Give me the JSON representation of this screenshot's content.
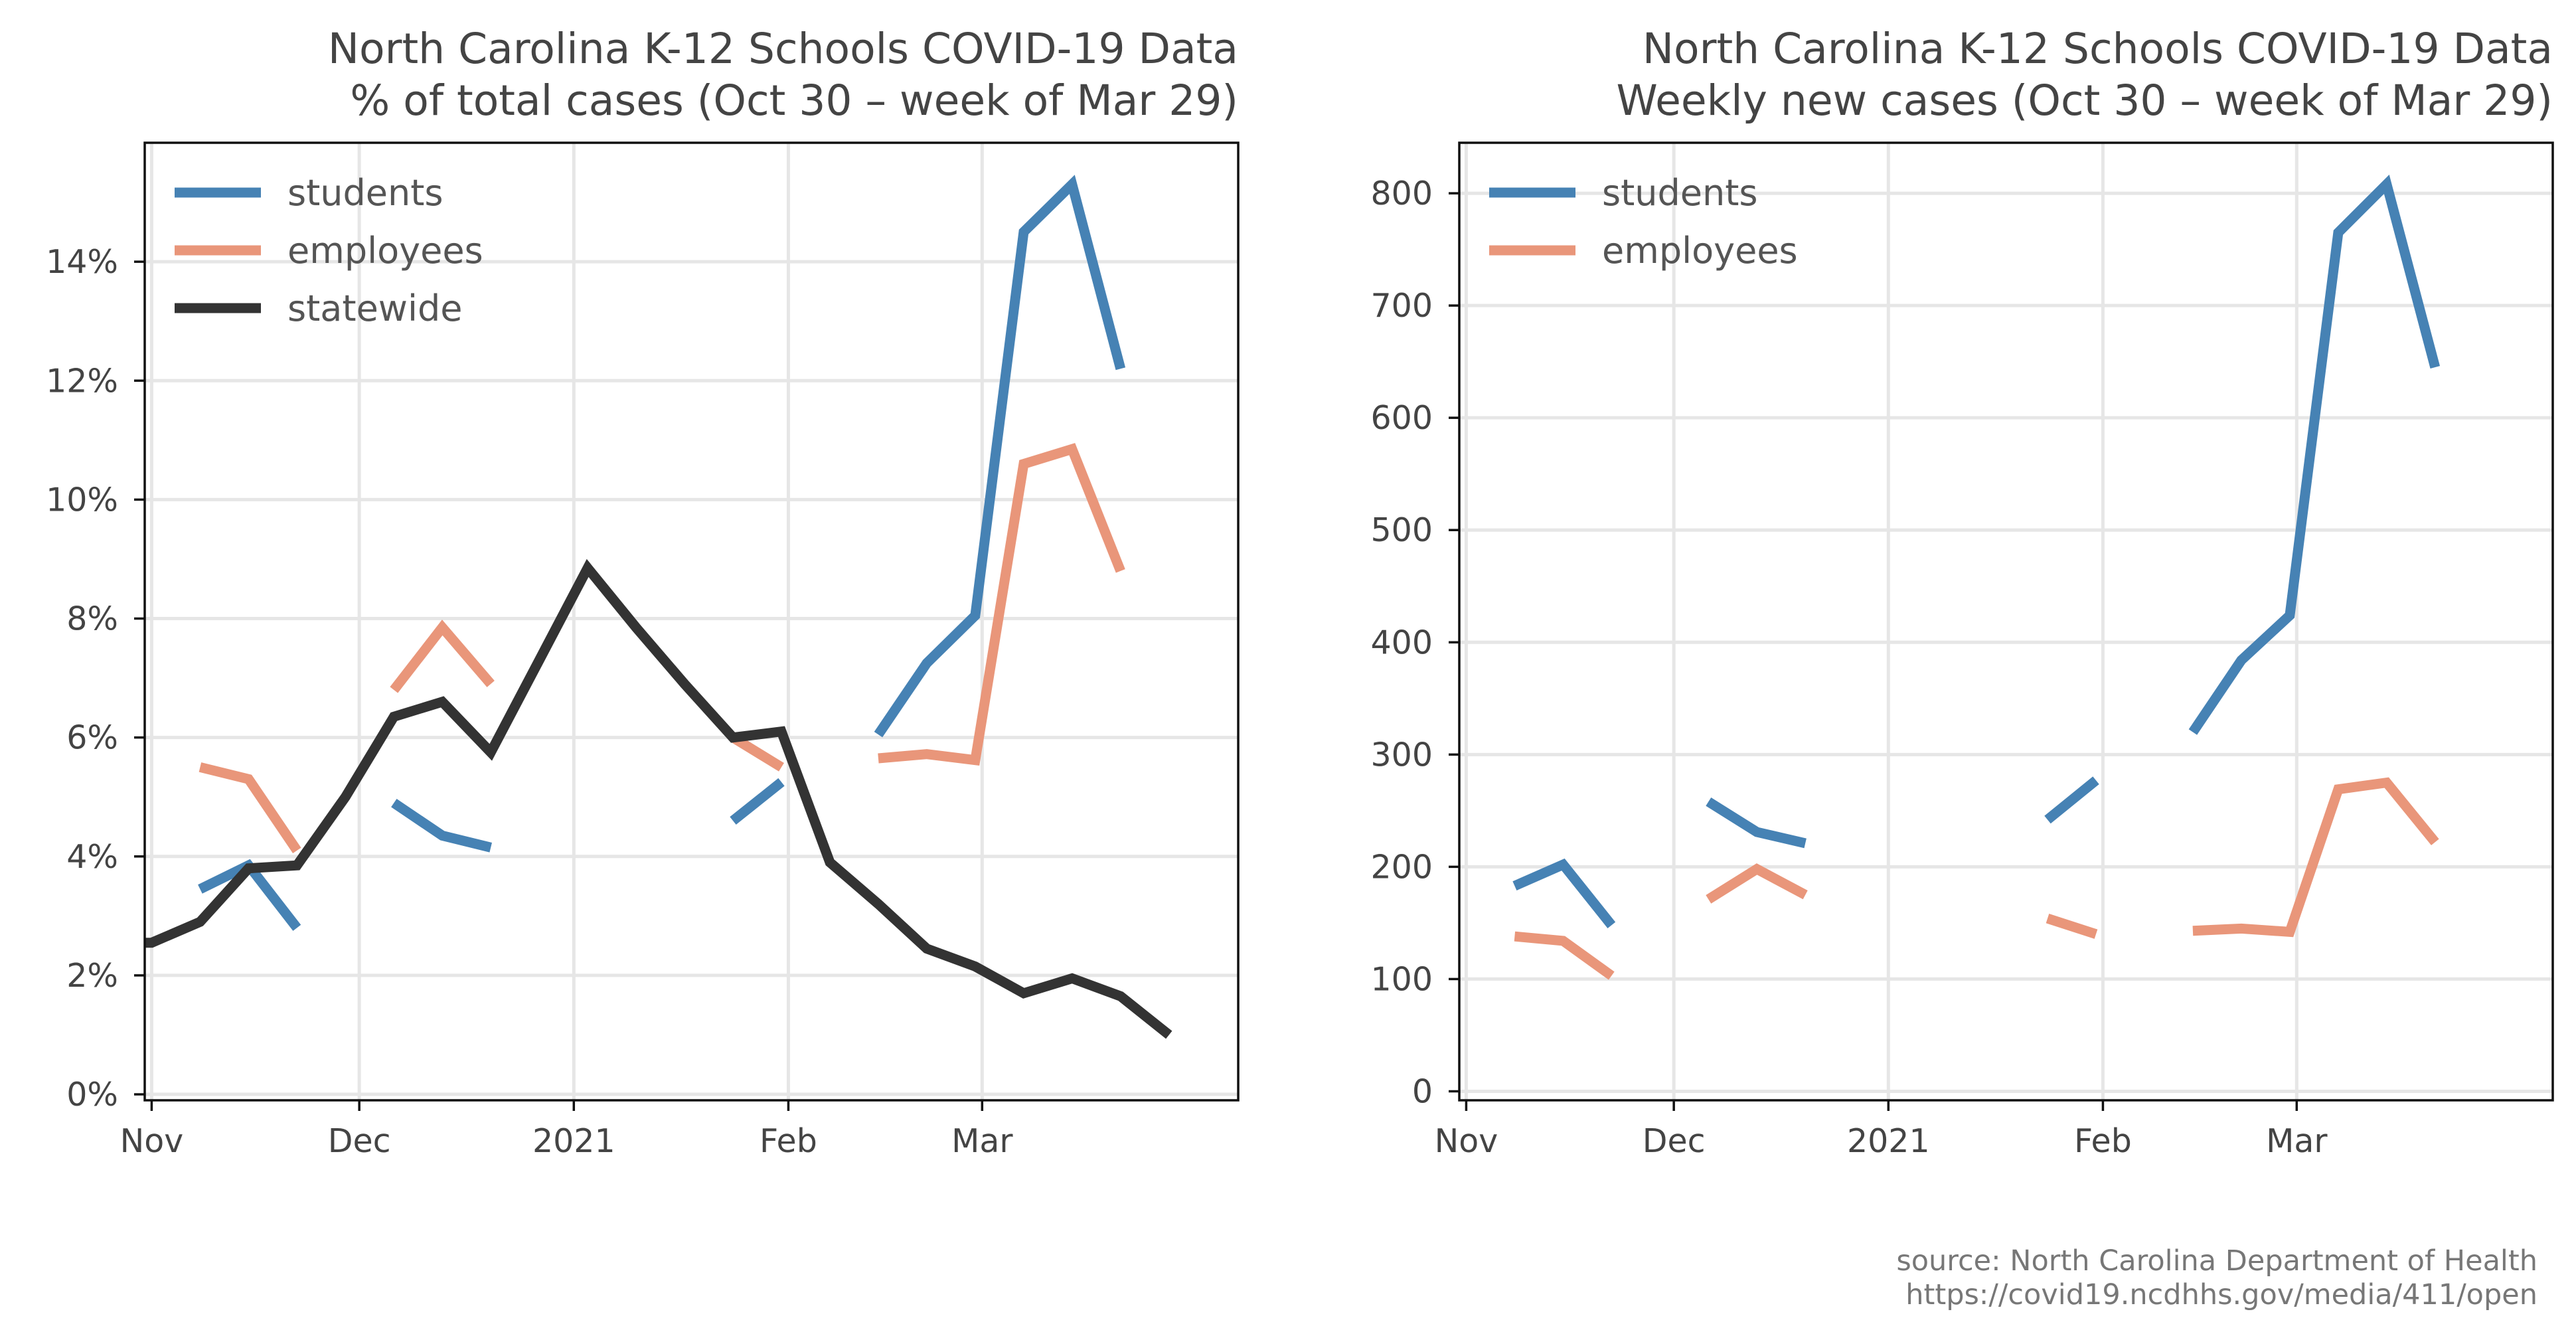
{
  "chart_data": [
    {
      "type": "line",
      "title": "North Carolina K-12 Schools COVID-19 Data",
      "subtitle": "% of total cases (Oct 30 – week of Mar 29)",
      "xlabel": "",
      "ylabel": "",
      "x_ticks": [
        {
          "date": "2020-11-01",
          "label": "Nov"
        },
        {
          "date": "2020-12-01",
          "label": "Dec"
        },
        {
          "date": "2021-01-01",
          "label": "2021"
        },
        {
          "date": "2021-02-01",
          "label": "Feb"
        },
        {
          "date": "2021-03-01",
          "label": "Mar"
        }
      ],
      "y_ticks": [
        {
          "value": 0,
          "label": "0%"
        },
        {
          "value": 2,
          "label": "2%"
        },
        {
          "value": 4,
          "label": "4%"
        },
        {
          "value": 6,
          "label": "6%"
        },
        {
          "value": 8,
          "label": "8%"
        },
        {
          "value": 10,
          "label": "10%"
        },
        {
          "value": 12,
          "label": "12%"
        },
        {
          "value": 14,
          "label": "14%"
        }
      ],
      "xlim": [
        "2020-10-31",
        "2021-04-07"
      ],
      "ylim": [
        -0.1,
        16.0
      ],
      "grid": true,
      "legend_position": "top-left",
      "series": [
        {
          "name": "students",
          "color": "#4682b4",
          "points": [
            [
              "2020-11-08",
              3.45
            ],
            [
              "2020-11-15",
              3.85
            ],
            [
              "2020-11-22",
              2.8
            ],
            null,
            [
              "2020-12-06",
              4.9
            ],
            [
              "2020-12-13",
              4.35
            ],
            [
              "2020-12-20",
              4.15
            ],
            null,
            [
              "2021-01-24",
              4.6
            ],
            [
              "2021-01-31",
              5.25
            ],
            null,
            [
              "2021-02-14",
              6.05
            ],
            [
              "2021-02-21",
              7.25
            ],
            [
              "2021-02-28",
              8.05
            ],
            [
              "2021-03-07",
              14.5
            ],
            [
              "2021-03-14",
              15.3
            ],
            [
              "2021-03-21",
              12.2
            ]
          ]
        },
        {
          "name": "employees",
          "color": "#e9967a",
          "points": [
            [
              "2020-11-08",
              5.5
            ],
            [
              "2020-11-15",
              5.3
            ],
            [
              "2020-11-22",
              4.1
            ],
            null,
            [
              "2020-12-06",
              6.8
            ],
            [
              "2020-12-13",
              7.85
            ],
            [
              "2020-12-20",
              6.9
            ],
            null,
            [
              "2021-01-24",
              6.0
            ],
            [
              "2021-01-31",
              5.5
            ],
            null,
            [
              "2021-02-14",
              5.65
            ],
            [
              "2021-02-21",
              5.72
            ],
            [
              "2021-02-28",
              5.62
            ],
            [
              "2021-03-07",
              10.6
            ],
            [
              "2021-03-14",
              10.85
            ],
            [
              "2021-03-21",
              8.8
            ]
          ]
        },
        {
          "name": "statewide",
          "color": "#333333",
          "points": [
            [
              "2020-10-31",
              2.55
            ],
            [
              "2020-11-01",
              2.55
            ],
            [
              "2020-11-08",
              2.9
            ],
            [
              "2020-11-15",
              3.8
            ],
            [
              "2020-11-22",
              3.85
            ],
            [
              "2020-11-29",
              5.0
            ],
            [
              "2020-12-06",
              6.35
            ],
            [
              "2020-12-13",
              6.6
            ],
            [
              "2020-12-20",
              5.75
            ],
            [
              "2020-12-27",
              7.3
            ],
            [
              "2021-01-03",
              8.85
            ],
            [
              "2021-01-10",
              7.85
            ],
            [
              "2021-01-17",
              6.9
            ],
            [
              "2021-01-24",
              6.0
            ],
            [
              "2021-01-31",
              6.1
            ],
            [
              "2021-02-07",
              3.9
            ],
            [
              "2021-02-14",
              3.2
            ],
            [
              "2021-02-21",
              2.45
            ],
            [
              "2021-02-28",
              2.15
            ],
            [
              "2021-03-07",
              1.7
            ],
            [
              "2021-03-14",
              1.95
            ],
            [
              "2021-03-21",
              1.65
            ],
            [
              "2021-03-28",
              1.0
            ]
          ]
        }
      ]
    },
    {
      "type": "line",
      "title": "North Carolina K-12 Schools COVID-19 Data",
      "subtitle": "Weekly new cases (Oct 30 – week of Mar 29)",
      "xlabel": "",
      "ylabel": "",
      "x_ticks": [
        {
          "date": "2020-11-01",
          "label": "Nov"
        },
        {
          "date": "2020-12-01",
          "label": "Dec"
        },
        {
          "date": "2021-01-01",
          "label": "2021"
        },
        {
          "date": "2021-02-01",
          "label": "Feb"
        },
        {
          "date": "2021-03-01",
          "label": "Mar"
        }
      ],
      "y_ticks": [
        {
          "value": 0,
          "label": "0"
        },
        {
          "value": 100,
          "label": "100"
        },
        {
          "value": 200,
          "label": "200"
        },
        {
          "value": 300,
          "label": "300"
        },
        {
          "value": 400,
          "label": "400"
        },
        {
          "value": 500,
          "label": "500"
        },
        {
          "value": 600,
          "label": "600"
        },
        {
          "value": 700,
          "label": "700"
        },
        {
          "value": 800,
          "label": "800"
        }
      ],
      "xlim": [
        "2020-10-31",
        "2021-04-07"
      ],
      "ylim": [
        -8,
        845
      ],
      "grid": true,
      "legend_position": "top-left",
      "series": [
        {
          "name": "students",
          "color": "#4682b4",
          "points": [
            [
              "2020-11-08",
              183
            ],
            [
              "2020-11-15",
              202
            ],
            [
              "2020-11-22",
              148
            ],
            null,
            [
              "2020-12-06",
              258
            ],
            [
              "2020-12-13",
              231
            ],
            [
              "2020-12-20",
              221
            ],
            null,
            [
              "2021-01-24",
              242
            ],
            [
              "2021-01-31",
              277
            ],
            null,
            [
              "2021-02-14",
              320
            ],
            [
              "2021-02-21",
              384
            ],
            [
              "2021-02-28",
              424
            ],
            [
              "2021-03-07",
              765
            ],
            [
              "2021-03-14",
              808
            ],
            [
              "2021-03-21",
              645
            ]
          ]
        },
        {
          "name": "employees",
          "color": "#e9967a",
          "points": [
            [
              "2020-11-08",
              138
            ],
            [
              "2020-11-15",
              134
            ],
            [
              "2020-11-22",
              103
            ],
            null,
            [
              "2020-12-06",
              171
            ],
            [
              "2020-12-13",
              198
            ],
            [
              "2020-12-20",
              175
            ],
            null,
            [
              "2021-01-24",
              154
            ],
            [
              "2021-01-31",
              140
            ],
            null,
            [
              "2021-02-14",
              143
            ],
            [
              "2021-02-21",
              145
            ],
            [
              "2021-02-28",
              142
            ],
            [
              "2021-03-07",
              269
            ],
            [
              "2021-03-14",
              275
            ],
            [
              "2021-03-21",
              222
            ]
          ]
        }
      ]
    }
  ],
  "source": {
    "line1": "source: North Carolina Department of Health",
    "line2": "https://covid19.ncdhhs.gov/media/411/open"
  }
}
